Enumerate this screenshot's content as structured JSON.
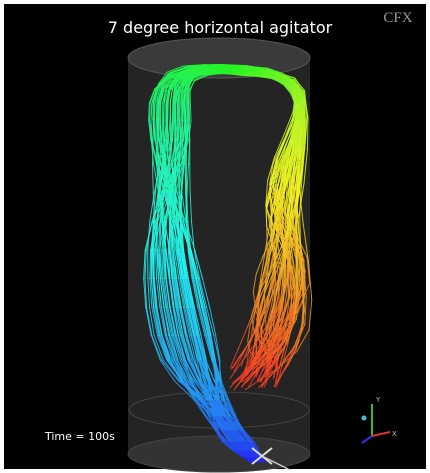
{
  "title": "7 degree horizontal agitator",
  "logo": "CFX",
  "time_label": "Time = 100s",
  "axes": {
    "y": "Y",
    "x": "X"
  }
}
